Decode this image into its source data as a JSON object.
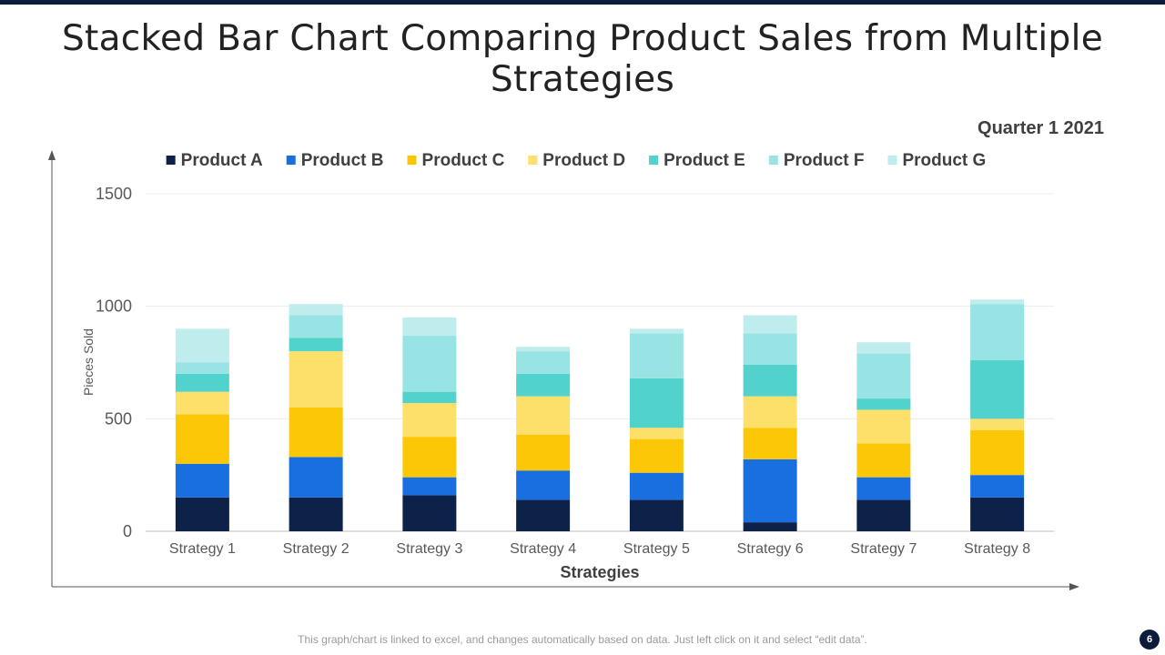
{
  "slide": {
    "title": "Stacked Bar Chart Comparing Product Sales from Multiple Strategies",
    "footer_note": "This graph/chart is linked to excel, and changes automatically based on data. Just left click on it and select “edit data”.",
    "page_number": "6"
  },
  "chart_data": {
    "type": "bar",
    "stacked": true,
    "title": "Quarter 1 2021",
    "xlabel": "Strategies",
    "ylabel": "Pieces Sold",
    "ylim": [
      0,
      1500
    ],
    "yticks": [
      0,
      500,
      1000,
      1500
    ],
    "grid": true,
    "legend_position": "top",
    "categories": [
      "Strategy 1",
      "Strategy 2",
      "Strategy 3",
      "Strategy 4",
      "Strategy 5",
      "Strategy 6",
      "Strategy 7",
      "Strategy 8"
    ],
    "series": [
      {
        "name": "Product A",
        "color": "#0c2248",
        "values": [
          150,
          150,
          160,
          140,
          140,
          40,
          140,
          150
        ]
      },
      {
        "name": "Product B",
        "color": "#1a6fe0",
        "values": [
          150,
          180,
          80,
          130,
          120,
          280,
          100,
          100
        ]
      },
      {
        "name": "Product C",
        "color": "#fcc707",
        "values": [
          220,
          220,
          180,
          160,
          150,
          140,
          150,
          200
        ]
      },
      {
        "name": "Product D",
        "color": "#fde06a",
        "values": [
          100,
          250,
          150,
          170,
          50,
          140,
          150,
          50
        ]
      },
      {
        "name": "Product E",
        "color": "#52d2cc",
        "values": [
          80,
          60,
          50,
          100,
          220,
          140,
          50,
          260
        ]
      },
      {
        "name": "Product F",
        "color": "#98e3e3",
        "values": [
          50,
          100,
          250,
          100,
          200,
          140,
          200,
          250
        ]
      },
      {
        "name": "Product G",
        "color": "#bfeced",
        "values": [
          150,
          50,
          80,
          20,
          20,
          80,
          50,
          20
        ]
      }
    ]
  }
}
